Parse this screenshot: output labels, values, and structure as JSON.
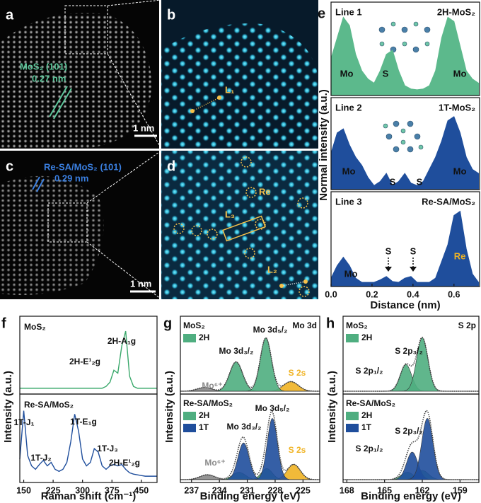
{
  "images": [
    {
      "letter": "a",
      "texts": [
        "MoS₂ (101)",
        "0.27 nm",
        "1 nm"
      ]
    },
    {
      "letter": "b",
      "texts": [
        "L₁"
      ]
    },
    {
      "letter": "c",
      "texts": [
        "Re-SA/MoS₂ (101)",
        "0.29 nm",
        "1 nm"
      ]
    },
    {
      "letter": "d",
      "texts": [
        "Re",
        "L₃",
        "L₂"
      ]
    }
  ],
  "chart_data": [
    {
      "type": "profile",
      "letter": "e",
      "ylabel": "Normal intensity (a.u.)",
      "xlabel": "Distance (nm)",
      "xlim": [
        0,
        0.725
      ],
      "xticks": [
        {
          "value": 0,
          "label": "0.0"
        },
        0.2,
        0.4,
        0.6
      ],
      "ylim": [
        0,
        1.1
      ],
      "x": [
        0,
        0.03,
        0.06,
        0.09,
        0.12,
        0.15,
        0.18,
        0.21,
        0.24,
        0.27,
        0.3,
        0.33,
        0.36,
        0.39,
        0.42,
        0.45,
        0.48,
        0.51,
        0.54,
        0.57,
        0.6,
        0.63,
        0.66,
        0.69,
        0.72
      ],
      "series": [
        {
          "name": "Line 1",
          "sample": "2H-MoS₂",
          "color": "#5cb98c",
          "values": [
            0.45,
            0.7,
            0.95,
            0.85,
            0.5,
            0.3,
            0.2,
            0.15,
            0.3,
            0.5,
            0.55,
            0.3,
            0.12,
            0.08,
            0.07,
            0.08,
            0.12,
            0.3,
            0.7,
            0.95,
            0.9,
            0.6,
            0.3,
            0.2,
            0.15
          ],
          "annotations": [
            "Mo",
            "S",
            "Mo"
          ]
        },
        {
          "name": "Line 2",
          "sample": "1T-MoS₂",
          "color": "#1f4e9c",
          "values": [
            0.45,
            0.7,
            0.75,
            0.55,
            0.4,
            0.3,
            0.15,
            0.05,
            0.1,
            0.2,
            0.05,
            0.1,
            0.2,
            0.08,
            0.05,
            0.1,
            0.25,
            0.4,
            0.6,
            0.85,
            0.9,
            0.7,
            0.4,
            0.25,
            0.2
          ],
          "annotations": [
            "Mo",
            "S",
            "S",
            "Mo"
          ]
        },
        {
          "name": "Line 3",
          "sample": "Re-SA/MoS₂",
          "color": "#1f4e9c",
          "values": [
            0.1,
            0.25,
            0.35,
            0.25,
            0.1,
            0.05,
            0.05,
            0.05,
            0.08,
            0.12,
            0.06,
            0.05,
            0.1,
            0.12,
            0.05,
            0.05,
            0.05,
            0.1,
            0.3,
            0.5,
            0.85,
            0.9,
            0.45,
            0.15,
            0.05
          ],
          "annotations": [
            "Mo",
            "S",
            "S",
            "Re"
          ]
        }
      ]
    },
    {
      "type": "raman",
      "letter": "f",
      "xlabel": "Raman shift (cm⁻¹)",
      "ylabel": "Intensity (a.u.)",
      "xlim": [
        140,
        490
      ],
      "xticks": [
        150,
        225,
        300,
        375,
        450
      ],
      "ylim": [
        0,
        1.2
      ],
      "x": [
        140,
        150,
        160,
        170,
        180,
        190,
        200,
        210,
        220,
        230,
        240,
        250,
        260,
        270,
        280,
        290,
        300,
        310,
        320,
        330,
        340,
        350,
        360,
        370,
        380,
        390,
        400,
        410,
        420,
        430,
        440,
        450,
        460,
        470,
        480,
        490
      ],
      "series": [
        {
          "name": "MoS₂",
          "color": "#3aa86b",
          "values": [
            0.05,
            0.05,
            0.05,
            0.05,
            0.05,
            0.05,
            0.05,
            0.05,
            0.05,
            0.05,
            0.05,
            0.05,
            0.05,
            0.05,
            0.05,
            0.05,
            0.05,
            0.05,
            0.05,
            0.05,
            0.05,
            0.05,
            0.08,
            0.15,
            0.35,
            0.3,
            0.75,
            1.0,
            0.25,
            0.08,
            0.05,
            0.05,
            0.05,
            0.05,
            0.05,
            0.05
          ],
          "annotations": [
            "2H-A₁g",
            "2H-E¹₂g"
          ]
        },
        {
          "name": "Re-SA/MoS₂",
          "color": "#1f4e9c",
          "values": [
            0.3,
            1.0,
            0.35,
            0.2,
            0.15,
            0.22,
            0.28,
            0.2,
            0.25,
            0.15,
            0.12,
            0.15,
            0.25,
            0.55,
            0.95,
            0.7,
            0.3,
            0.2,
            0.25,
            0.45,
            0.4,
            0.2,
            0.15,
            0.2,
            0.22,
            0.2,
            0.22,
            0.15,
            0.1,
            0.08,
            0.07,
            0.06,
            0.05,
            0.05,
            0.05,
            0.05
          ],
          "annotations": [
            "1T-J₁",
            "1T-J₂",
            "1T-E₁g",
            "1T-J₃",
            "2H-E¹₂g"
          ]
        }
      ]
    },
    {
      "type": "xps",
      "letter": "g",
      "corner": "Mo 3d",
      "xlabel": "Binding energy (eV)",
      "ylabel": "Intensity (a.u.)",
      "xlim": [
        238.2,
        223.2
      ],
      "xticks": [
        237,
        234,
        231,
        228,
        225
      ],
      "ylim": [
        0,
        1.35
      ],
      "subplots": [
        {
          "sample": "MoS₂",
          "series": [
            {
              "name": "2H",
              "color": "#4fae80",
              "peaks": [
                {
                  "center": 232.2,
                  "height": 0.55,
                  "width": 0.7
                },
                {
                  "center": 229.0,
                  "height": 1.0,
                  "width": 0.6
                }
              ]
            }
          ],
          "other_peaks": [
            {
              "label": "Mo⁶⁺",
              "color": "#8a8a8a",
              "center": 235.6,
              "height": 0.07,
              "width": 0.8
            },
            {
              "label": "S 2s",
              "color": "#f0b323",
              "center": 226.3,
              "height": 0.18,
              "width": 0.8
            }
          ],
          "annotations": [
            "Mo 3d₃/₂",
            "Mo 3d₅/₂"
          ]
        },
        {
          "sample": "Re-SA/MoS₂",
          "series": [
            {
              "name": "2H",
              "color": "#4fae80",
              "peaks": [
                {
                  "center": 231.9,
                  "height": 0.12,
                  "width": 0.7
                },
                {
                  "center": 228.9,
                  "height": 0.18,
                  "width": 0.6
                }
              ]
            },
            {
              "name": "1T",
              "color": "#1f4e9c",
              "peaks": [
                {
                  "center": 231.4,
                  "height": 0.6,
                  "width": 0.6
                },
                {
                  "center": 228.3,
                  "height": 1.0,
                  "width": 0.55
                }
              ]
            }
          ],
          "other_peaks": [
            {
              "label": "Mo⁶⁺",
              "color": "#8a8a8a",
              "center": 235.3,
              "height": 0.08,
              "width": 0.8
            },
            {
              "label": "S 2s",
              "color": "#f0b323",
              "center": 226.0,
              "height": 0.25,
              "width": 0.7
            }
          ],
          "annotations": [
            "Mo 3d₅/₂",
            "Mo 3d₃/₂"
          ]
        }
      ]
    },
    {
      "type": "xps",
      "letter": "h",
      "corner": "S 2p",
      "xlabel": "Binding energy (eV)",
      "ylabel": "Intensity (a.u.)",
      "xlim": [
        168.3,
        157.5
      ],
      "xticks": [
        168,
        165,
        162,
        159
      ],
      "ylim": [
        0,
        1.35
      ],
      "subplots": [
        {
          "sample": "MoS₂",
          "series": [
            {
              "name": "2H",
              "color": "#4fae80",
              "peaks": [
                {
                  "center": 163.3,
                  "height": 0.5,
                  "width": 0.45
                },
                {
                  "center": 162.0,
                  "height": 1.0,
                  "width": 0.45
                }
              ]
            }
          ],
          "other_peaks": [],
          "annotations": [
            "S 2p₁/₂",
            "S 2p₃/₂"
          ]
        },
        {
          "sample": "Re-SA/MoS₂",
          "series": [
            {
              "name": "2H",
              "color": "#4fae80",
              "peaks": [
                {
                  "center": 163.2,
                  "height": 0.12,
                  "width": 0.5
                },
                {
                  "center": 162.0,
                  "height": 0.15,
                  "width": 0.5
                }
              ]
            },
            {
              "name": "1T",
              "color": "#1f4e9c",
              "peaks": [
                {
                  "center": 162.8,
                  "height": 0.45,
                  "width": 0.45
                },
                {
                  "center": 161.6,
                  "height": 1.0,
                  "width": 0.45
                }
              ]
            }
          ],
          "other_peaks": [],
          "annotations": [
            "S 2p₁/₂",
            "S 2p₃/₂"
          ]
        }
      ]
    }
  ]
}
